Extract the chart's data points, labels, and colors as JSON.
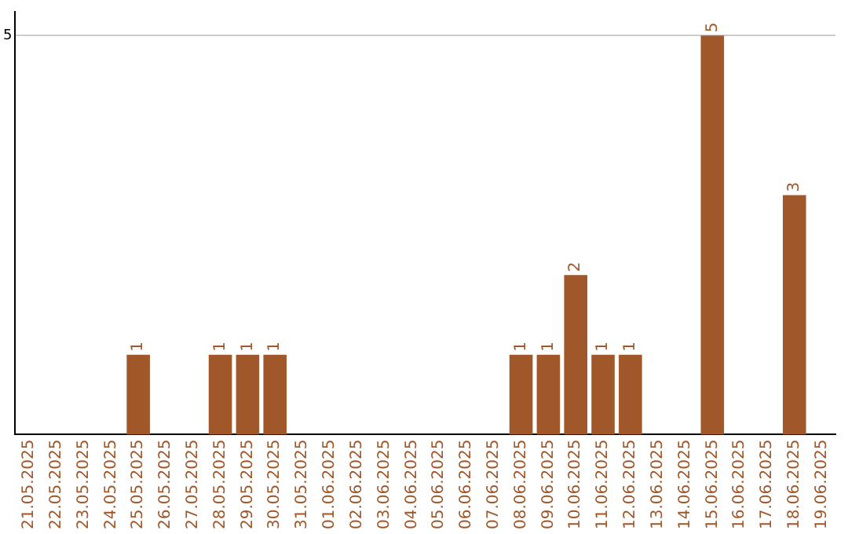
{
  "chart_data": {
    "type": "bar",
    "categories": [
      "21.05.2025",
      "22.05.2025",
      "23.05.2025",
      "24.05.2025",
      "25.05.2025",
      "26.05.2025",
      "27.05.2025",
      "28.05.2025",
      "29.05.2025",
      "30.05.2025",
      "31.05.2025",
      "01.06.2025",
      "02.06.2025",
      "03.06.2025",
      "04.06.2025",
      "05.06.2025",
      "06.06.2025",
      "07.06.2025",
      "08.06.2025",
      "09.06.2025",
      "10.06.2025",
      "11.06.2025",
      "12.06.2025",
      "13.06.2025",
      "14.06.2025",
      "15.06.2025",
      "16.06.2025",
      "17.06.2025",
      "18.06.2025",
      "19.06.2025"
    ],
    "values": [
      0,
      0,
      0,
      0,
      1,
      0,
      0,
      1,
      1,
      1,
      0,
      0,
      0,
      0,
      0,
      0,
      0,
      0,
      1,
      1,
      2,
      1,
      1,
      0,
      0,
      5,
      0,
      0,
      3,
      0
    ],
    "value_labels": [
      null,
      null,
      null,
      null,
      "1",
      null,
      null,
      "1",
      "1",
      "1",
      null,
      null,
      null,
      null,
      null,
      null,
      null,
      null,
      "1",
      "1",
      "2",
      "1",
      "1",
      null,
      null,
      "5",
      null,
      null,
      "3",
      null
    ],
    "color": "#a0572a",
    "ylim": [
      0,
      5.3
    ],
    "yticks": [
      5
    ],
    "grid": "y",
    "legend": false
  }
}
